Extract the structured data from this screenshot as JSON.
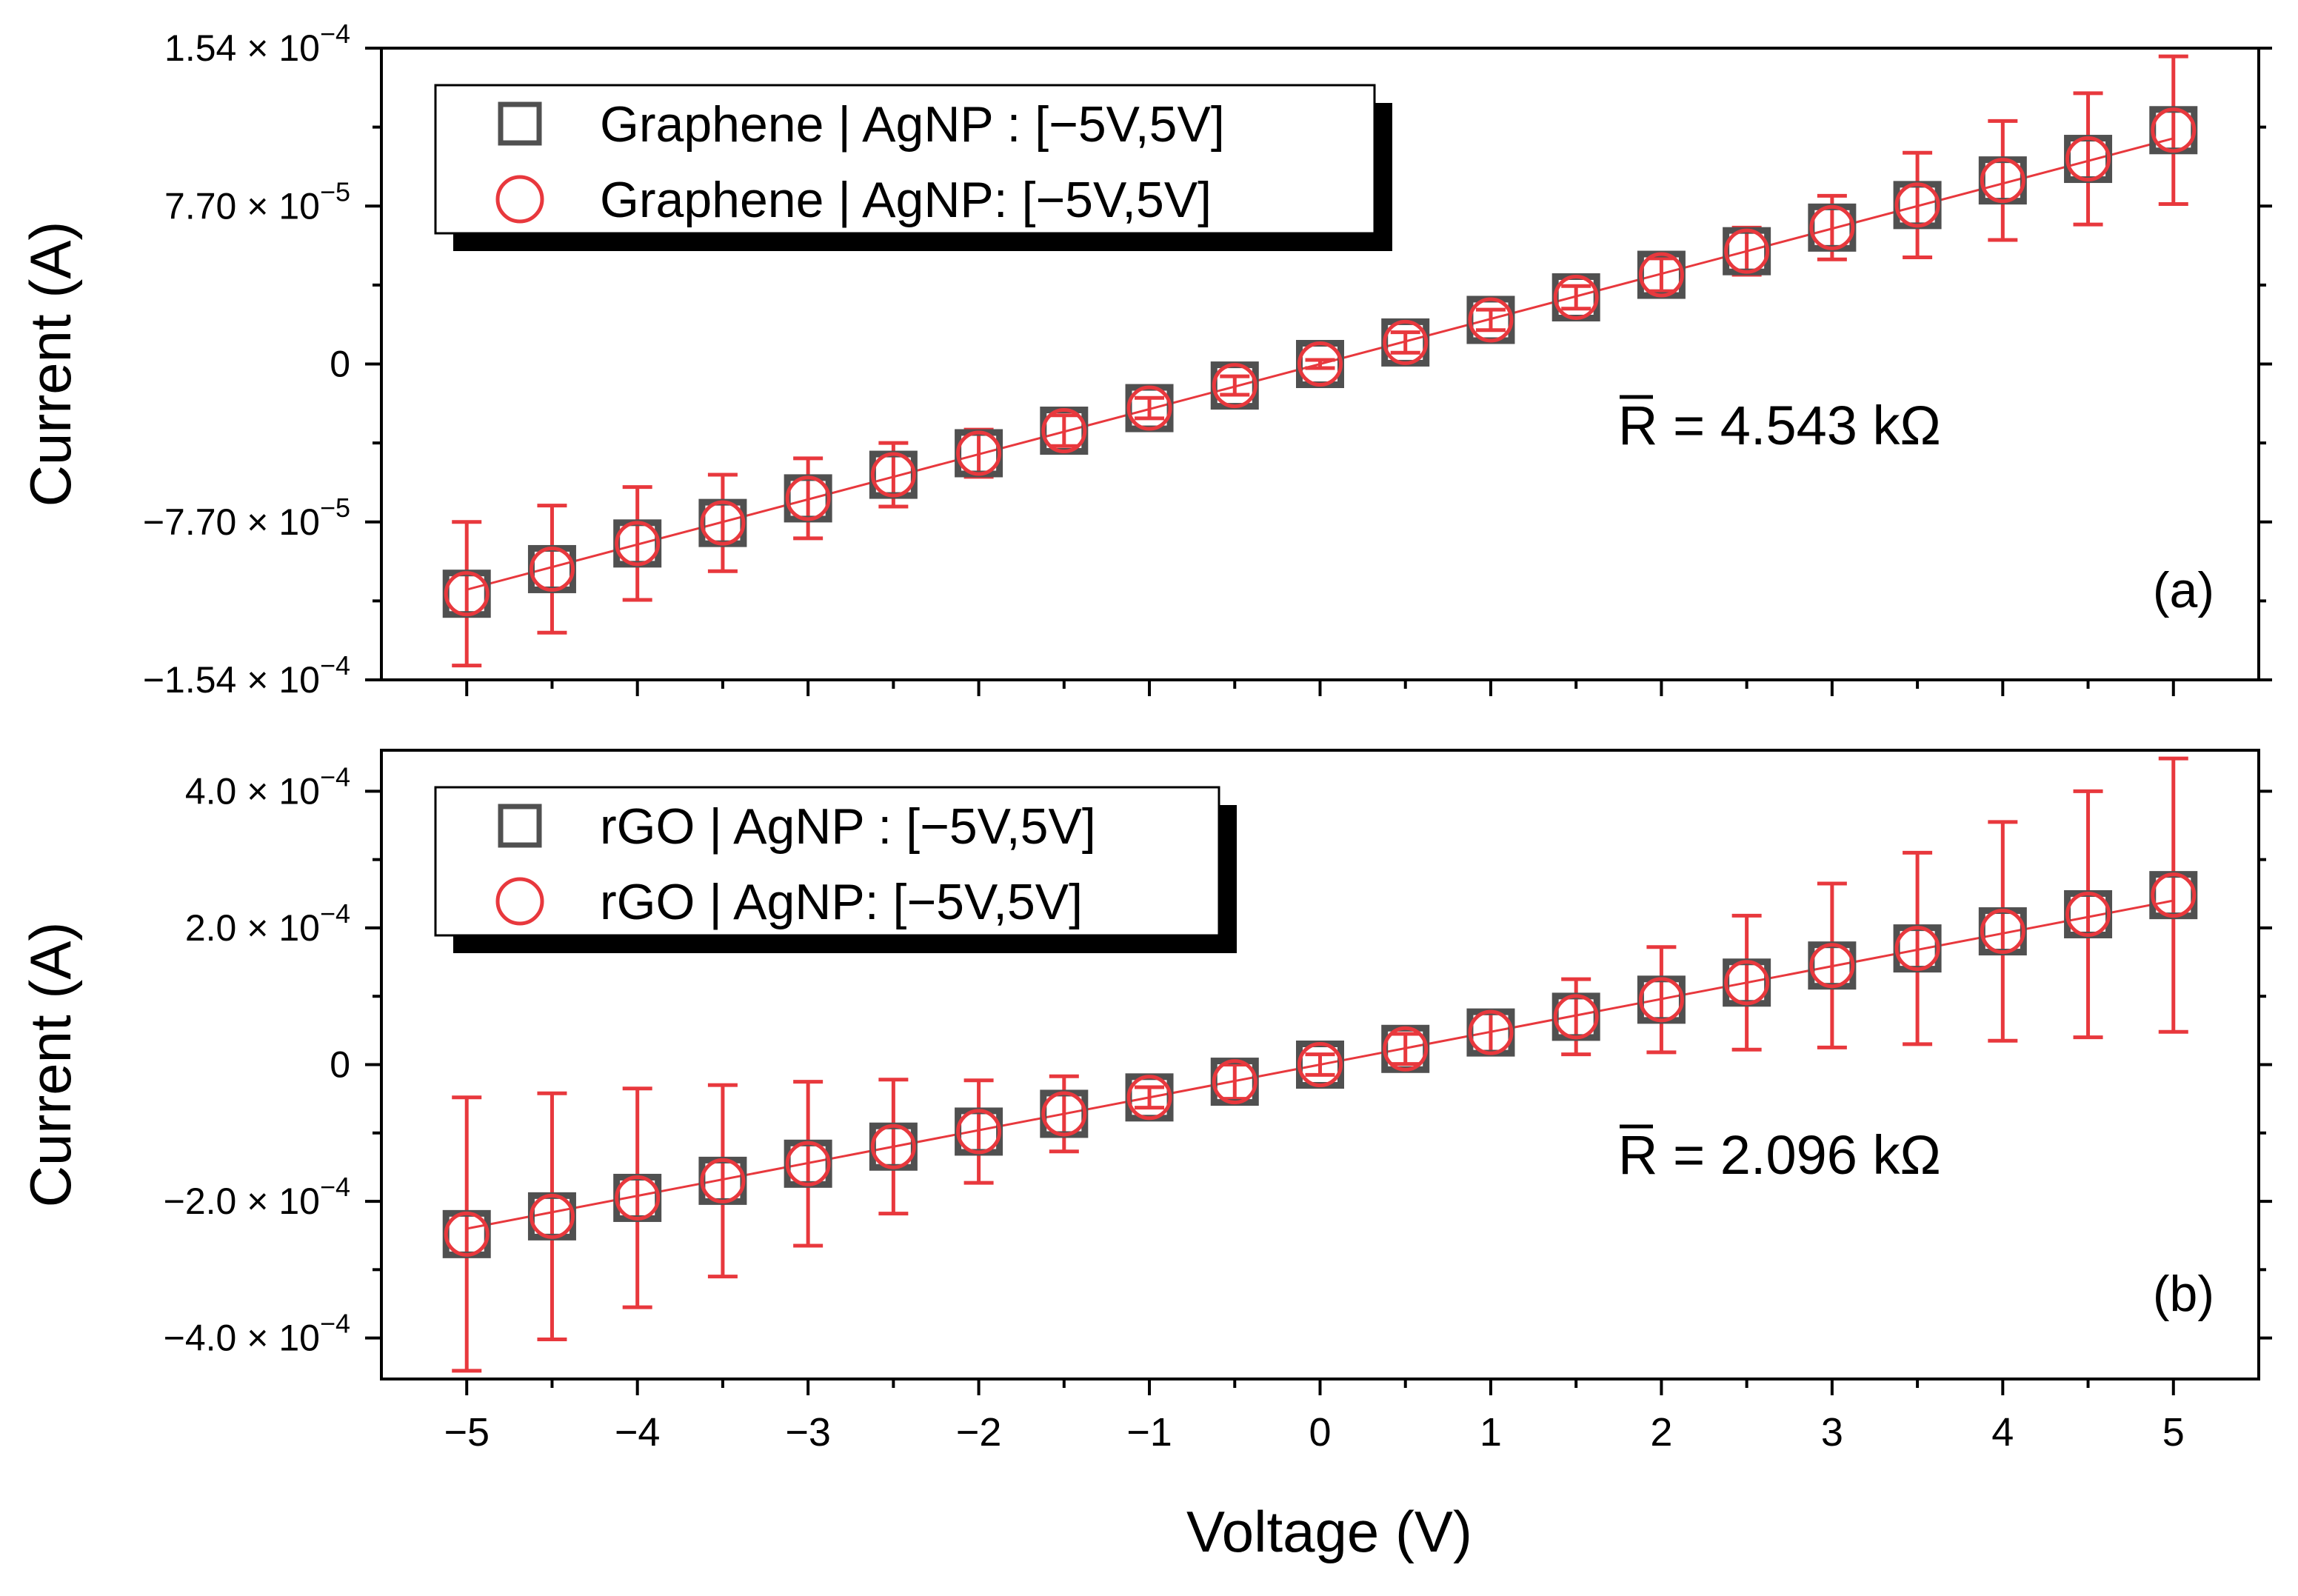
{
  "x_axis": {
    "label": "Voltage (V)",
    "ticks": [
      -5,
      -4,
      -3,
      -2,
      -1,
      0,
      1,
      2,
      3,
      4,
      5
    ],
    "tick_labels": [
      "−5",
      "−4",
      "−3",
      "−2",
      "−1",
      "0",
      "1",
      "2",
      "3",
      "4",
      "5"
    ]
  },
  "colors": {
    "square": "#505050",
    "circle": "#e8383d",
    "fit_line": "#e8383d",
    "error_bar": "#e8383d",
    "axis": "#000000"
  },
  "chart_data": [
    {
      "type": "scatter",
      "panel_label": "(a)",
      "annotation": "R = 4.543 kΩ",
      "annotation_overline_char": "R",
      "xlabel": "Voltage (V)",
      "ylabel": "Current (A)",
      "xlim": [
        -5.5,
        5.5
      ],
      "ylim": [
        -0.000154,
        0.000154
      ],
      "yticks": [
        -0.000154,
        -7.7e-05,
        0,
        7.7e-05,
        0.000154
      ],
      "ytick_labels": [
        {
          "mantissa": "−1.54",
          "exp": "−4"
        },
        {
          "mantissa": "−7.70",
          "exp": "−5"
        },
        {
          "mantissa": "0",
          "exp": ""
        },
        {
          "mantissa": "7.70",
          "exp": "−5"
        },
        {
          "mantissa": "1.54",
          "exp": "−4"
        }
      ],
      "legend": {
        "position": "top-left",
        "entries": [
          {
            "marker": "square",
            "label": "Graphene | AgNP : [−5V,5V]"
          },
          {
            "marker": "circle",
            "label": "Graphene | AgNP: [−5V,5V]"
          }
        ]
      },
      "x": [
        -5,
        -4.5,
        -4,
        -3.5,
        -3,
        -2.5,
        -2,
        -1.5,
        -1,
        -0.5,
        0,
        0.5,
        1,
        1.5,
        2,
        2.5,
        3,
        3.5,
        4,
        4.5,
        5
      ],
      "series": [
        {
          "name": "Graphene | AgNP : [−5V,5V]",
          "marker": "square",
          "values": [
            -0.000112,
            -0.0001,
            -8.75e-05,
            -7.75e-05,
            -6.55e-05,
            -5.4e-05,
            -4.35e-05,
            -3.25e-05,
            -2.15e-05,
            -1.05e-05,
            0,
            1.05e-05,
            2.15e-05,
            3.25e-05,
            4.35e-05,
            5.5e-05,
            6.65e-05,
            7.75e-05,
            8.95e-05,
            0.0001,
            0.000114
          ],
          "error": [
            3.5e-05,
            3.1e-05,
            2.75e-05,
            2.35e-05,
            1.95e-05,
            1.55e-05,
            1.15e-05,
            7.5e-06,
            5e-06,
            4.5e-06,
            2e-06,
            5e-06,
            5e-06,
            5.5e-06,
            8e-06,
            1.15e-05,
            1.55e-05,
            2.55e-05,
            2.9e-05,
            3.2e-05,
            3.6e-05
          ]
        },
        {
          "name": "Graphene | AgNP: [−5V,5V]",
          "marker": "circle",
          "values": [
            -0.000112,
            -0.0001,
            -8.75e-05,
            -7.75e-05,
            -6.55e-05,
            -5.4e-05,
            -4.35e-05,
            -3.25e-05,
            -2.15e-05,
            -1.05e-05,
            0,
            1.05e-05,
            2.15e-05,
            3.25e-05,
            4.35e-05,
            5.5e-05,
            6.65e-05,
            7.75e-05,
            8.95e-05,
            0.0001,
            0.000114
          ],
          "error": [
            3.5e-05,
            3.1e-05,
            2.75e-05,
            2.35e-05,
            1.95e-05,
            1.55e-05,
            1.15e-05,
            7.5e-06,
            5e-06,
            4.5e-06,
            2e-06,
            5e-06,
            5e-06,
            5.5e-06,
            8e-06,
            1.15e-05,
            1.55e-05,
            2.55e-05,
            2.9e-05,
            3.2e-05,
            3.6e-05
          ]
        }
      ],
      "fit_line": {
        "x": [
          -5,
          5
        ],
        "y": [
          -0.00011,
          0.00011
        ]
      }
    },
    {
      "type": "scatter",
      "panel_label": "(b)",
      "annotation": "R = 2.096 kΩ",
      "annotation_overline_char": "R",
      "xlabel": "Voltage (V)",
      "ylabel": "Current (A)",
      "xlim": [
        -5.5,
        5.5
      ],
      "ylim": [
        -0.00046,
        0.00046
      ],
      "yticks": [
        -0.0004,
        -0.0002,
        0,
        0.0002,
        0.0004
      ],
      "ytick_labels": [
        {
          "mantissa": "−4.0",
          "exp": "−4"
        },
        {
          "mantissa": "−2.0",
          "exp": "−4"
        },
        {
          "mantissa": "0",
          "exp": ""
        },
        {
          "mantissa": "2.0",
          "exp": "−4"
        },
        {
          "mantissa": "4.0",
          "exp": "−4"
        }
      ],
      "legend": {
        "position": "top-left",
        "entries": [
          {
            "marker": "square",
            "label": "rGO | AgNP : [−5V,5V]"
          },
          {
            "marker": "circle",
            "label": "rGO | AgNP: [−5V,5V]"
          }
        ]
      },
      "x": [
        -5,
        -4.5,
        -4,
        -3.5,
        -3,
        -2.5,
        -2,
        -1.5,
        -1,
        -0.5,
        0,
        0.5,
        1,
        1.5,
        2,
        2.5,
        3,
        3.5,
        4,
        4.5,
        5
      ],
      "series": [
        {
          "name": "rGO | AgNP : [−5V,5V]",
          "marker": "square",
          "values": [
            -0.000248,
            -0.000222,
            -0.000195,
            -0.00017,
            -0.000145,
            -0.00012,
            -9.8e-05,
            -7.2e-05,
            -4.8e-05,
            -2.5e-05,
            0,
            2.3e-05,
            4.7e-05,
            7e-05,
            9.5e-05,
            0.00012,
            0.000145,
            0.00017,
            0.000195,
            0.00022,
            0.000248
          ],
          "error": [
            0.0002,
            0.00018,
            0.00016,
            0.00014,
            0.00012,
            9.8e-05,
            7.5e-05,
            5.5e-05,
            1.5e-05,
            2.5e-05,
            1.5e-05,
            2.2e-05,
            2.8e-05,
            5.5e-05,
            7.7e-05,
            9.8e-05,
            0.00012,
            0.00014,
            0.00016,
            0.00018,
            0.0002
          ]
        },
        {
          "name": "rGO | AgNP: [−5V,5V]",
          "marker": "circle",
          "values": [
            -0.000248,
            -0.000222,
            -0.000195,
            -0.00017,
            -0.000145,
            -0.00012,
            -9.8e-05,
            -7.2e-05,
            -4.8e-05,
            -2.5e-05,
            0,
            2.3e-05,
            4.7e-05,
            7e-05,
            9.5e-05,
            0.00012,
            0.000145,
            0.00017,
            0.000195,
            0.00022,
            0.000248
          ],
          "error": [
            0.0002,
            0.00018,
            0.00016,
            0.00014,
            0.00012,
            9.8e-05,
            7.5e-05,
            5.5e-05,
            1.5e-05,
            2.5e-05,
            1.5e-05,
            2.2e-05,
            2.8e-05,
            5.5e-05,
            7.7e-05,
            9.8e-05,
            0.00012,
            0.00014,
            0.00016,
            0.00018,
            0.0002
          ]
        }
      ],
      "fit_line": {
        "x": [
          -5,
          5
        ],
        "y": [
          -0.00024,
          0.00024
        ]
      }
    }
  ]
}
